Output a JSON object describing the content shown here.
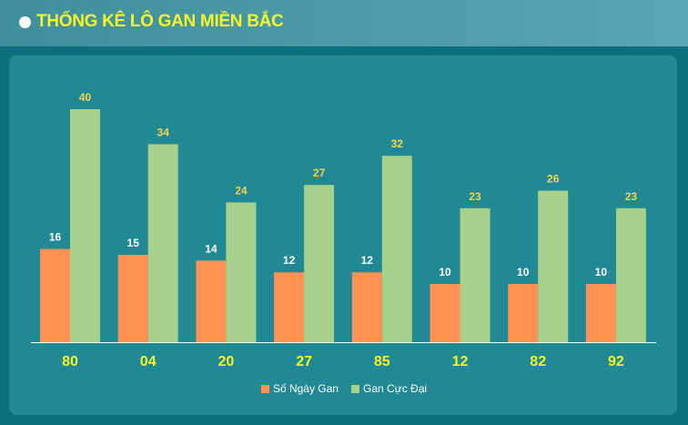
{
  "header": {
    "title": "THỐNG KÊ LÔ GAN MIỀN BẮC"
  },
  "colors": {
    "series_days": "#ff9155",
    "series_max": "#a8d08d",
    "label_days": "#ffffff",
    "label_max": "#f7d54a",
    "category": "#f5f52a"
  },
  "chart_data": {
    "type": "bar",
    "title": "THỐNG KÊ LÔ GAN MIỀN BẮC",
    "categories": [
      "80",
      "04",
      "20",
      "27",
      "85",
      "12",
      "82",
      "92"
    ],
    "series": [
      {
        "name": "Số Ngày Gan",
        "values": [
          16,
          15,
          14,
          12,
          12,
          10,
          10,
          10
        ]
      },
      {
        "name": "Gan Cực Đại",
        "values": [
          40,
          34,
          24,
          27,
          32,
          23,
          26,
          23
        ]
      }
    ],
    "ylim": [
      0,
      40
    ],
    "grid": false,
    "legend": "bottom-center"
  }
}
